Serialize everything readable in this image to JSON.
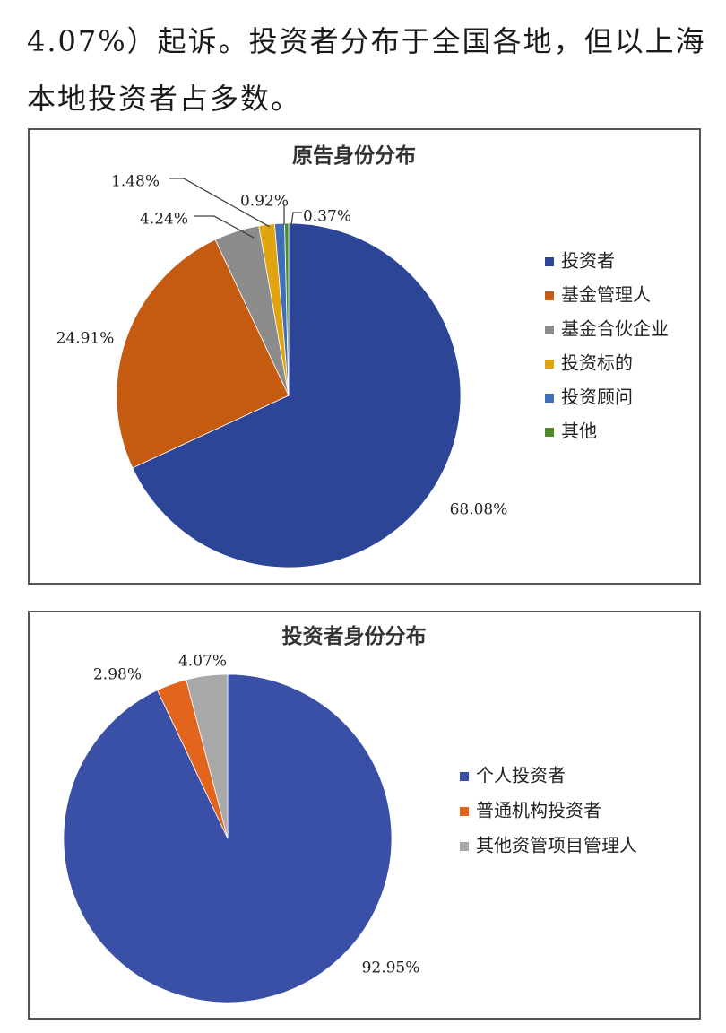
{
  "intro": {
    "line1": "4.07%）起诉。投资者分布于全国各地，但以上海",
    "line2": "本地投资者占多数。"
  },
  "chart_data": [
    {
      "type": "pie",
      "title": "原告身份分布",
      "legend_position": "right",
      "slices": [
        {
          "name": "投资者",
          "value": 68.08,
          "label": "68.08%",
          "color": "#2c4596"
        },
        {
          "name": "基金管理人",
          "value": 24.91,
          "label": "24.91%",
          "color": "#c55a11"
        },
        {
          "name": "基金合伙企业",
          "value": 4.24,
          "label": "4.24%",
          "color": "#8c8c8c"
        },
        {
          "name": "投资标的",
          "value": 1.48,
          "label": "1.48%",
          "color": "#e0a410"
        },
        {
          "name": "投资顾问",
          "value": 0.92,
          "label": "0.92%",
          "color": "#3f6fb8"
        },
        {
          "name": "其他",
          "value": 0.37,
          "label": "0.37%",
          "color": "#4e8a2c"
        }
      ]
    },
    {
      "type": "pie",
      "title": "投资者身份分布",
      "legend_position": "right",
      "slices": [
        {
          "name": "个人投资者",
          "value": 92.95,
          "label": "92.95%",
          "color": "#3a4fa6"
        },
        {
          "name": "普通机构投资者",
          "value": 2.98,
          "label": "2.98%",
          "color": "#e3641d"
        },
        {
          "name": "其他资管项目管理人",
          "value": 4.07,
          "label": "4.07%",
          "color": "#a8a8a8"
        }
      ]
    }
  ]
}
